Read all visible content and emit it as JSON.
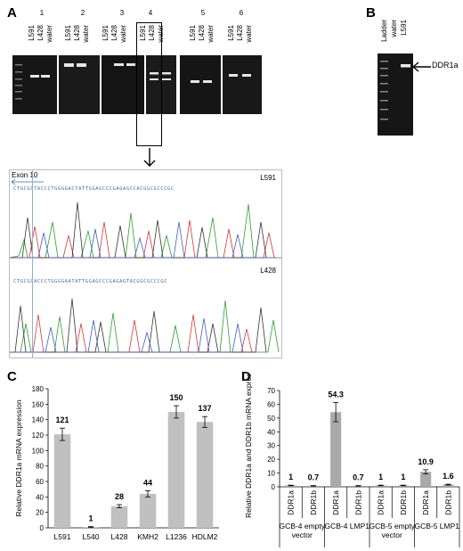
{
  "panel_a": {
    "letter": "A",
    "gels": [
      {
        "number": "1",
        "lanes": [
          "L591",
          "L428",
          "water"
        ]
      },
      {
        "number": "2",
        "lanes": [
          "L591",
          "L428",
          "water"
        ]
      },
      {
        "number": "3",
        "lanes": [
          "L591",
          "L428",
          "water"
        ]
      },
      {
        "number": "4",
        "lanes": [
          "L591",
          "L428",
          "water"
        ]
      },
      {
        "number": "5",
        "lanes": [
          "L591",
          "L428",
          "water"
        ]
      },
      {
        "number": "6",
        "lanes": [
          "L591",
          "L428",
          "water"
        ]
      }
    ],
    "exon_label": "Exon 10",
    "trace_top_label": "L591",
    "trace_bottom_label": "L428",
    "seq_top": "CTGCGCTACCCTGGGGACTATTGGAGCCCGAGAGCCACGGCGCCCGC",
    "seq_bottom": "CTGCGCACCCTGGGGAATATTGGAGCCCGAGAGTACGGCGCCCGC"
  },
  "panel_b": {
    "letter": "B",
    "lanes": [
      "Ladder",
      "water",
      "L591"
    ],
    "band_label": "DDR1a"
  },
  "chart_data": [
    {
      "type": "bar",
      "panel": "C",
      "categories": [
        "L591",
        "L540",
        "L428",
        "KMH2",
        "L1236",
        "HDLM2"
      ],
      "values": [
        121,
        1,
        28,
        44,
        150,
        137
      ],
      "errors": [
        8,
        0.5,
        2,
        4,
        8,
        7
      ],
      "data_labels": [
        "121",
        "1",
        "28",
        "44",
        "150",
        "137"
      ],
      "ylabel": "Relative DDR1a mRNA expression",
      "ylim": [
        0,
        180
      ],
      "yticks": [
        "0",
        "20",
        "40",
        "60",
        "80",
        "100",
        "120",
        "140",
        "160",
        "180"
      ],
      "bar_color": "#c0c0c0"
    },
    {
      "type": "bar",
      "panel": "D",
      "categories": [
        "DDR1a",
        "DDR1b",
        "DDR1a",
        "DDR1b",
        "DDR1a",
        "DDR1b",
        "DDR1a",
        "DDR1b"
      ],
      "groups": [
        "GCB-4 empty vector",
        "GCB-4 LMP1",
        "GCB-5 empty vector",
        "GCB-5 LMP1"
      ],
      "values": [
        1,
        0.7,
        54.3,
        0.7,
        1,
        1,
        10.9,
        1.6
      ],
      "errors": [
        0.2,
        0.2,
        7,
        0.2,
        0.2,
        0.2,
        1.5,
        0.3
      ],
      "data_labels": [
        "1",
        "0.7",
        "54.3",
        "0.7",
        "1",
        "1",
        "10.9",
        "1.6"
      ],
      "ylabel": "Relative DDR1a and DDR1b mRNA expression",
      "ylim": [
        0,
        70
      ],
      "yticks": [
        "0",
        "10",
        "20",
        "30",
        "40",
        "50",
        "60",
        "70"
      ],
      "bar_color": "#a9a9a9"
    }
  ]
}
